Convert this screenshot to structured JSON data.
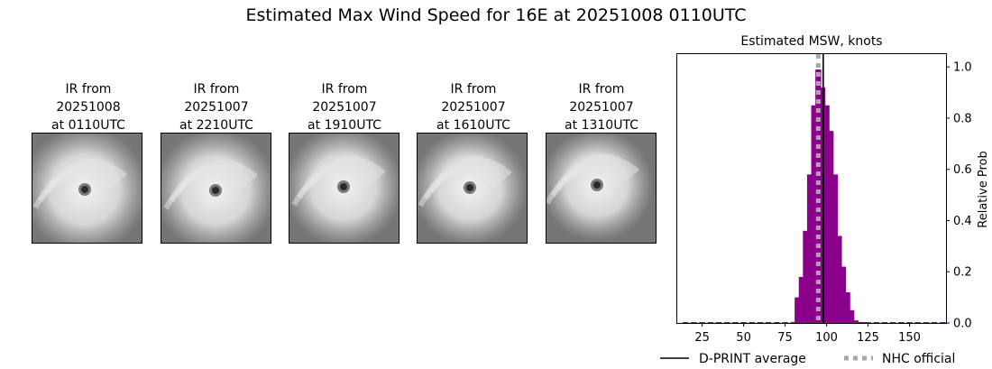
{
  "page": {
    "title": "Estimated Max Wind Speed for 16E at 20251008 0110UTC"
  },
  "ir_images": [
    {
      "line1": "IR from",
      "line2": "20251008",
      "line3": "at 0110UTC",
      "icon": "hurricane-ir-satellite-icon"
    },
    {
      "line1": "IR from",
      "line2": "20251007",
      "line3": "at 2210UTC",
      "icon": "hurricane-ir-satellite-icon"
    },
    {
      "line1": "IR from",
      "line2": "20251007",
      "line3": "at 1910UTC",
      "icon": "hurricane-ir-satellite-icon"
    },
    {
      "line1": "IR from",
      "line2": "20251007",
      "line3": "at 1610UTC",
      "icon": "hurricane-ir-satellite-icon"
    },
    {
      "line1": "IR from",
      "line2": "20251007",
      "line3": "at 1310UTC",
      "icon": "hurricane-ir-satellite-icon"
    }
  ],
  "chart_data": {
    "type": "bar",
    "title": "Estimated MSW, knots",
    "xlabel": "",
    "ylabel": "Relative Prob",
    "xlim": [
      10,
      172
    ],
    "ylim": [
      0,
      1.05
    ],
    "xticks": [
      25,
      50,
      75,
      100,
      125,
      150
    ],
    "yticks": [
      0.0,
      0.2,
      0.4,
      0.6,
      0.8,
      1.0
    ],
    "ytick_labels": [
      "0.0",
      "0.2",
      "0.4",
      "0.6",
      "0.8",
      "1.0"
    ],
    "y_axis_side": "right",
    "grid": false,
    "bar_color": "#8b008b",
    "bar_width": 3.5,
    "x": [
      15,
      20,
      25,
      30,
      35,
      40,
      45,
      50,
      55,
      60,
      65,
      70,
      75,
      80,
      82.5,
      85,
      87.5,
      90,
      92.5,
      95,
      97.5,
      100,
      102.5,
      105,
      107.5,
      110,
      112.5,
      115,
      117.5,
      120,
      122.5,
      125,
      130,
      135,
      140,
      145,
      150,
      155,
      160,
      165,
      170
    ],
    "values": [
      0.002,
      0.002,
      0.002,
      0.002,
      0.002,
      0.002,
      0.002,
      0.002,
      0.002,
      0.002,
      0.002,
      0.002,
      0.002,
      0.004,
      0.1,
      0.18,
      0.36,
      0.58,
      0.85,
      0.99,
      0.92,
      0.85,
      0.75,
      0.58,
      0.34,
      0.22,
      0.12,
      0.05,
      0.01,
      0.004,
      0.002,
      0.002,
      0.002,
      0.002,
      0.002,
      0.002,
      0.002,
      0.002,
      0.002,
      0.002,
      0.002
    ],
    "lines": [
      {
        "name": "D-PRINT average",
        "x": 98,
        "color": "#000000",
        "style": "solid"
      },
      {
        "name": "NHC official",
        "x": 95,
        "color": "#a8a8a8",
        "style": "dotted"
      }
    ],
    "legend_placement": "bottom"
  }
}
